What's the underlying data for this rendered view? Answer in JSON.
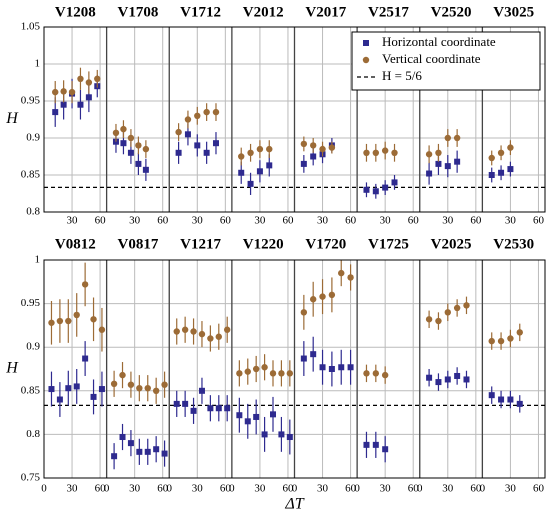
{
  "chart_data": [
    {
      "type": "errorbar",
      "ylabel": "H",
      "ylim": [
        0.8,
        1.05
      ],
      "yticks": [
        0.8,
        0.85,
        0.9,
        0.95,
        1,
        1.05
      ],
      "xlim": [
        0,
        67
      ],
      "xticks": [
        30,
        60
      ],
      "grid": true,
      "legend": "upper right",
      "reference": {
        "value": 0.8333,
        "label": "H = 5/6"
      },
      "series": [
        {
          "name": "Horizontal coordinate",
          "color": "#2e2a8f",
          "marker": "square"
        },
        {
          "name": "Vertical coordinate",
          "color": "#9c6b36",
          "marker": "circle"
        }
      ],
      "panels": [
        {
          "title": "V1208",
          "x": [
            12,
            21,
            30,
            39,
            48,
            57
          ],
          "series": [
            {
              "values": [
                0.935,
                0.945,
                0.96,
                0.945,
                0.955,
                0.97
              ],
              "errors": [
                0.02,
                0.02,
                0.02,
                0.02,
                0.02,
                0.015
              ]
            },
            {
              "values": [
                0.962,
                0.963,
                0.962,
                0.98,
                0.975,
                0.98
              ],
              "errors": [
                0.015,
                0.015,
                0.015,
                0.015,
                0.015,
                0.012
              ]
            }
          ]
        },
        {
          "title": "V1708",
          "x": [
            10,
            18,
            26,
            34,
            42
          ],
          "series": [
            {
              "values": [
                0.895,
                0.893,
                0.88,
                0.865,
                0.857
              ],
              "errors": [
                0.015,
                0.015,
                0.015,
                0.015,
                0.015
              ]
            },
            {
              "values": [
                0.907,
                0.912,
                0.9,
                0.89,
                0.885
              ],
              "errors": [
                0.012,
                0.012,
                0.012,
                0.012,
                0.012
              ]
            }
          ]
        },
        {
          "title": "V1712",
          "x": [
            10,
            20,
            30,
            40,
            50
          ],
          "series": [
            {
              "values": [
                0.88,
                0.905,
                0.89,
                0.88,
                0.893
              ],
              "errors": [
                0.015,
                0.015,
                0.015,
                0.015,
                0.015
              ]
            },
            {
              "values": [
                0.908,
                0.925,
                0.93,
                0.935,
                0.935
              ],
              "errors": [
                0.012,
                0.012,
                0.012,
                0.012,
                0.012
              ]
            }
          ]
        },
        {
          "title": "V2012",
          "x": [
            10,
            20,
            30,
            40
          ],
          "series": [
            {
              "values": [
                0.853,
                0.838,
                0.855,
                0.863
              ],
              "errors": [
                0.015,
                0.015,
                0.015,
                0.015
              ]
            },
            {
              "values": [
                0.875,
                0.88,
                0.885,
                0.885
              ],
              "errors": [
                0.012,
                0.012,
                0.012,
                0.012
              ]
            }
          ]
        },
        {
          "title": "V2017",
          "x": [
            10,
            20,
            30,
            40
          ],
          "series": [
            {
              "values": [
                0.865,
                0.875,
                0.878,
                0.89
              ],
              "errors": [
                0.012,
                0.012,
                0.012,
                0.01
              ]
            },
            {
              "values": [
                0.892,
                0.89,
                0.885,
                0.887
              ],
              "errors": [
                0.01,
                0.01,
                0.01,
                0.008
              ]
            }
          ]
        },
        {
          "title": "V2517",
          "x": [
            10,
            20,
            30,
            40
          ],
          "series": [
            {
              "values": [
                0.83,
                0.828,
                0.833,
                0.84
              ],
              "errors": [
                0.01,
                0.01,
                0.01,
                0.01
              ]
            },
            {
              "values": [
                0.88,
                0.88,
                0.883,
                0.88
              ],
              "errors": [
                0.012,
                0.012,
                0.012,
                0.012
              ]
            }
          ]
        },
        {
          "title": "V2520",
          "x": [
            10,
            20,
            30,
            40
          ],
          "series": [
            {
              "values": [
                0.852,
                0.865,
                0.862,
                0.868
              ],
              "errors": [
                0.015,
                0.015,
                0.015,
                0.015
              ]
            },
            {
              "values": [
                0.878,
                0.88,
                0.9,
                0.9
              ],
              "errors": [
                0.012,
                0.012,
                0.012,
                0.012
              ]
            }
          ]
        },
        {
          "title": "V3025",
          "x": [
            10,
            20,
            30
          ],
          "series": [
            {
              "values": [
                0.85,
                0.853,
                0.858
              ],
              "errors": [
                0.01,
                0.01,
                0.01
              ]
            },
            {
              "values": [
                0.873,
                0.88,
                0.887
              ],
              "errors": [
                0.01,
                0.01,
                0.01
              ]
            }
          ]
        }
      ]
    },
    {
      "type": "errorbar",
      "ylabel": "H",
      "xlabel": "ΔT",
      "ylim": [
        0.75,
        1
      ],
      "yticks": [
        0.75,
        0.8,
        0.85,
        0.9,
        0.95,
        1
      ],
      "xlim": [
        0,
        67
      ],
      "xticks": [
        0,
        30,
        60
      ],
      "grid": true,
      "reference": {
        "value": 0.8333
      },
      "series": [
        {
          "color": "#2e2a8f",
          "marker": "square"
        },
        {
          "color": "#9c6b36",
          "marker": "circle"
        }
      ],
      "panels": [
        {
          "title": "V0812",
          "x": [
            8,
            17,
            26,
            35,
            44,
            53,
            62
          ],
          "series": [
            {
              "values": [
                0.852,
                0.84,
                0.853,
                0.855,
                0.887,
                0.843,
                0.852
              ],
              "errors": [
                0.02,
                0.02,
                0.02,
                0.02,
                0.02,
                0.02,
                0.02
              ]
            },
            {
              "values": [
                0.928,
                0.93,
                0.93,
                0.937,
                0.972,
                0.932,
                0.92
              ],
              "errors": [
                0.025,
                0.025,
                0.025,
                0.025,
                0.025,
                0.025,
                0.025
              ]
            }
          ]
        },
        {
          "title": "V0817",
          "x": [
            8,
            17,
            26,
            35,
            44,
            53,
            62
          ],
          "series": [
            {
              "values": [
                0.775,
                0.797,
                0.79,
                0.78,
                0.78,
                0.783,
                0.778
              ],
              "errors": [
                0.015,
                0.015,
                0.015,
                0.015,
                0.015,
                0.015,
                0.015
              ]
            },
            {
              "values": [
                0.858,
                0.868,
                0.857,
                0.853,
                0.853,
                0.85,
                0.857
              ],
              "errors": [
                0.015,
                0.015,
                0.015,
                0.015,
                0.015,
                0.015,
                0.015
              ]
            }
          ]
        },
        {
          "title": "V1217",
          "x": [
            8,
            17,
            26,
            35,
            44,
            53,
            62
          ],
          "series": [
            {
              "values": [
                0.835,
                0.835,
                0.827,
                0.85,
                0.83,
                0.83,
                0.83
              ],
              "errors": [
                0.015,
                0.015,
                0.015,
                0.015,
                0.015,
                0.015,
                0.015
              ]
            },
            {
              "values": [
                0.918,
                0.92,
                0.918,
                0.915,
                0.91,
                0.912,
                0.92
              ],
              "errors": [
                0.015,
                0.015,
                0.015,
                0.015,
                0.015,
                0.015,
                0.015
              ]
            }
          ]
        },
        {
          "title": "V1220",
          "x": [
            8,
            17,
            26,
            35,
            44,
            53,
            62
          ],
          "series": [
            {
              "values": [
                0.822,
                0.815,
                0.82,
                0.8,
                0.823,
                0.8,
                0.797
              ],
              "errors": [
                0.02,
                0.02,
                0.02,
                0.02,
                0.02,
                0.02,
                0.02
              ]
            },
            {
              "values": [
                0.87,
                0.872,
                0.875,
                0.877,
                0.87,
                0.87,
                0.87
              ],
              "errors": [
                0.015,
                0.015,
                0.015,
                0.015,
                0.015,
                0.015,
                0.015
              ]
            }
          ]
        },
        {
          "title": "V1720",
          "x": [
            10,
            20,
            30,
            40,
            50,
            60
          ],
          "series": [
            {
              "values": [
                0.887,
                0.892,
                0.877,
                0.875,
                0.877,
                0.877
              ],
              "errors": [
                0.02,
                0.02,
                0.02,
                0.02,
                0.02,
                0.02
              ]
            },
            {
              "values": [
                0.94,
                0.955,
                0.958,
                0.96,
                0.985,
                0.98
              ],
              "errors": [
                0.02,
                0.02,
                0.02,
                0.02,
                0.015,
                0.015
              ]
            }
          ]
        },
        {
          "title": "V1725",
          "x": [
            10,
            20,
            30
          ],
          "series": [
            {
              "values": [
                0.788,
                0.788,
                0.783
              ],
              "errors": [
                0.015,
                0.015,
                0.015
              ]
            },
            {
              "values": [
                0.87,
                0.87,
                0.868
              ],
              "errors": [
                0.01,
                0.01,
                0.01
              ]
            }
          ]
        },
        {
          "title": "V2025",
          "x": [
            10,
            20,
            30,
            40,
            50
          ],
          "series": [
            {
              "values": [
                0.865,
                0.86,
                0.863,
                0.867,
                0.863
              ],
              "errors": [
                0.01,
                0.01,
                0.01,
                0.01,
                0.01
              ]
            },
            {
              "values": [
                0.932,
                0.93,
                0.94,
                0.945,
                0.948
              ],
              "errors": [
                0.01,
                0.01,
                0.01,
                0.01,
                0.01
              ]
            }
          ]
        },
        {
          "title": "V2530",
          "x": [
            10,
            20,
            30,
            40
          ],
          "series": [
            {
              "values": [
                0.845,
                0.84,
                0.84,
                0.835
              ],
              "errors": [
                0.01,
                0.01,
                0.01,
                0.01
              ]
            },
            {
              "values": [
                0.907,
                0.907,
                0.91,
                0.917
              ],
              "errors": [
                0.01,
                0.01,
                0.01,
                0.01
              ]
            }
          ]
        }
      ]
    }
  ]
}
